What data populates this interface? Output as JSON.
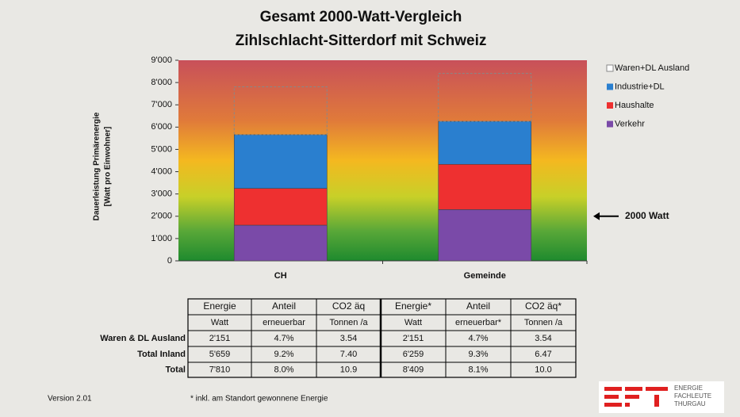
{
  "chart_data": {
    "type": "stacked_bar",
    "title": [
      "Gesamt 2000-Watt-Vergleich",
      "Zihlschlacht-Sitterdorf mit Schweiz"
    ],
    "ylabel": [
      "Dauerleistung Primärenergie",
      "[Watt pro Einwohner]"
    ],
    "categories": [
      "CH",
      "Gemeinde"
    ],
    "series": [
      {
        "name": "Verkehr",
        "color": "#7a4aa8",
        "values": [
          1600,
          2300
        ]
      },
      {
        "name": "Haushalte",
        "color": "#ee3030",
        "values": [
          1650,
          2030
        ]
      },
      {
        "name": "Industrie+DL",
        "color": "#2a7fcf",
        "values": [
          2409,
          1929
        ]
      },
      {
        "name": "Waren+DL Ausland",
        "color": "#ffffff",
        "style": "dashed",
        "values": [
          2151,
          2151
        ]
      }
    ],
    "ylim": [
      0,
      9000
    ],
    "yticks": [
      0,
      {
        "value": 1000,
        "label": "1'000"
      },
      {
        "value": 2000,
        "label": "2'000"
      },
      {
        "value": 3000,
        "label": "3'000"
      },
      {
        "value": 4000,
        "label": "4'000"
      },
      {
        "value": 5000,
        "label": "5'000"
      },
      {
        "value": 6000,
        "label": "6'000"
      },
      {
        "value": 7000,
        "label": "7'000"
      },
      {
        "value": 8000,
        "label": "8'000"
      },
      {
        "value": 9000,
        "label": "9'000"
      }
    ],
    "annotation": {
      "text": "2000 Watt",
      "value": 2000
    },
    "legend": "right"
  },
  "table": {
    "header": [
      "Energie",
      "Anteil",
      "CO2 äq",
      "Energie*",
      "Anteil",
      "CO2 äq*"
    ],
    "subheader": [
      "Watt",
      "erneuerbar",
      "Tonnen /a",
      "Watt",
      "erneuerbar*",
      "Tonnen /a"
    ],
    "rows": [
      {
        "label": "Waren & DL Ausland",
        "cells": [
          "2'151",
          "4.7%",
          "3.54",
          "2'151",
          "4.7%",
          "3.54"
        ]
      },
      {
        "label": "Total Inland",
        "cells": [
          "5'659",
          "9.2%",
          "7.40",
          "6'259",
          "9.3%",
          "6.47"
        ]
      },
      {
        "label": "Total",
        "cells": [
          "7'810",
          "8.0%",
          "10.9",
          "8'409",
          "8.1%",
          "10.0"
        ]
      }
    ]
  },
  "footer": {
    "version": "Version 2.01",
    "note": "* inkl. am Standort gewonnene Energie"
  },
  "logo": {
    "lines": [
      "ENERGIE",
      "FACHLEUTE",
      "THURGAU"
    ]
  }
}
